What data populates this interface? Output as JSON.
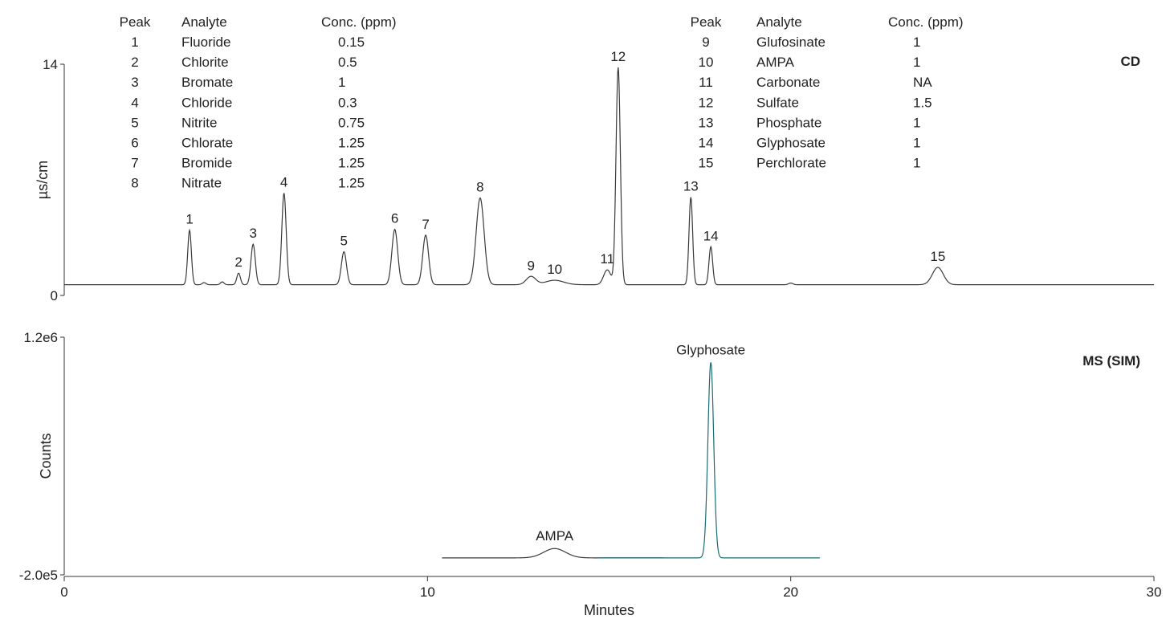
{
  "chart_data": {
    "type": "line",
    "x_axis": {
      "label": "Minutes",
      "range": [
        0,
        30
      ],
      "ticks": [
        "0",
        "10",
        "20",
        "30"
      ]
    },
    "panels": [
      {
        "tag": "CD",
        "ylabel": "µs/cm",
        "ylim": [
          0,
          14
        ],
        "y_ticks": [
          "0",
          "14"
        ],
        "baseline": 0.65,
        "series_color": "#3a3a3a",
        "peaks": [
          {
            "label": "1",
            "x": 3.45,
            "y": 3.95,
            "w": 0.05
          },
          {
            "label": "",
            "x": 3.85,
            "y": 0.78,
            "w": 0.05
          },
          {
            "label": "",
            "x": 4.35,
            "y": 0.82,
            "w": 0.05
          },
          {
            "label": "2",
            "x": 4.8,
            "y": 1.35,
            "w": 0.05
          },
          {
            "label": "3",
            "x": 5.2,
            "y": 3.1,
            "w": 0.06
          },
          {
            "label": "4",
            "x": 6.05,
            "y": 6.2,
            "w": 0.06
          },
          {
            "label": "5",
            "x": 7.7,
            "y": 2.65,
            "w": 0.07
          },
          {
            "label": "6",
            "x": 9.1,
            "y": 4.0,
            "w": 0.08
          },
          {
            "label": "7",
            "x": 9.95,
            "y": 3.65,
            "w": 0.08
          },
          {
            "label": "8",
            "x": 11.45,
            "y": 5.9,
            "w": 0.11
          },
          {
            "label": "9",
            "x": 12.85,
            "y": 1.15,
            "w": 0.13
          },
          {
            "label": "10",
            "x": 13.5,
            "y": 0.92,
            "w": 0.25
          },
          {
            "label": "11",
            "x": 14.95,
            "y": 1.55,
            "w": 0.1
          },
          {
            "label": "12",
            "x": 15.25,
            "y": 13.8,
            "w": 0.06
          },
          {
            "label": "13",
            "x": 17.25,
            "y": 5.95,
            "w": 0.05
          },
          {
            "label": "14",
            "x": 17.8,
            "y": 2.95,
            "w": 0.05
          },
          {
            "label": "",
            "x": 20.0,
            "y": 0.75,
            "w": 0.06
          },
          {
            "label": "15",
            "x": 24.05,
            "y": 1.7,
            "w": 0.15
          }
        ]
      },
      {
        "tag": "MS (SIM)",
        "ylabel": "Counts",
        "ylim": [
          -200000,
          1200000
        ],
        "y_ticks": [
          "-2.0e5",
          "1.2e6"
        ],
        "x_extent": [
          10.4,
          20.8
        ],
        "series": [
          {
            "name": "AMPA",
            "color": "#3a3a3a",
            "x_range": [
              10.4,
              16.5
            ],
            "baseline": -100000,
            "peaks": [
              {
                "label": "AMPA",
                "x": 13.5,
                "y": -45000,
                "w": 0.3
              }
            ]
          },
          {
            "name": "Glyphosate",
            "color": "#1a6b73",
            "x_range": [
              14.7,
              20.8
            ],
            "baseline": -100000,
            "peaks": [
              {
                "label": "Glyphosate",
                "x": 17.8,
                "y": 1050000,
                "w": 0.08
              }
            ]
          }
        ]
      }
    ],
    "table": {
      "headers": [
        "Peak",
        "Analyte",
        "Conc. (ppm)"
      ],
      "rows": [
        [
          "1",
          "Fluoride",
          "0.15"
        ],
        [
          "2",
          "Chlorite",
          "0.5"
        ],
        [
          "3",
          "Bromate",
          "1"
        ],
        [
          "4",
          "Chloride",
          "0.3"
        ],
        [
          "5",
          "Nitrite",
          "0.75"
        ],
        [
          "6",
          "Chlorate",
          "1.25"
        ],
        [
          "7",
          "Bromide",
          "1.25"
        ],
        [
          "8",
          "Nitrate",
          "1.25"
        ],
        [
          "9",
          "Glufosinate",
          "1"
        ],
        [
          "10",
          "AMPA",
          "1"
        ],
        [
          "11",
          "Carbonate",
          "NA"
        ],
        [
          "12",
          "Sulfate",
          "1.5"
        ],
        [
          "13",
          "Phosphate",
          "1"
        ],
        [
          "14",
          "Glyphosate",
          "1"
        ],
        [
          "15",
          "Perchlorate",
          "1"
        ]
      ]
    }
  }
}
